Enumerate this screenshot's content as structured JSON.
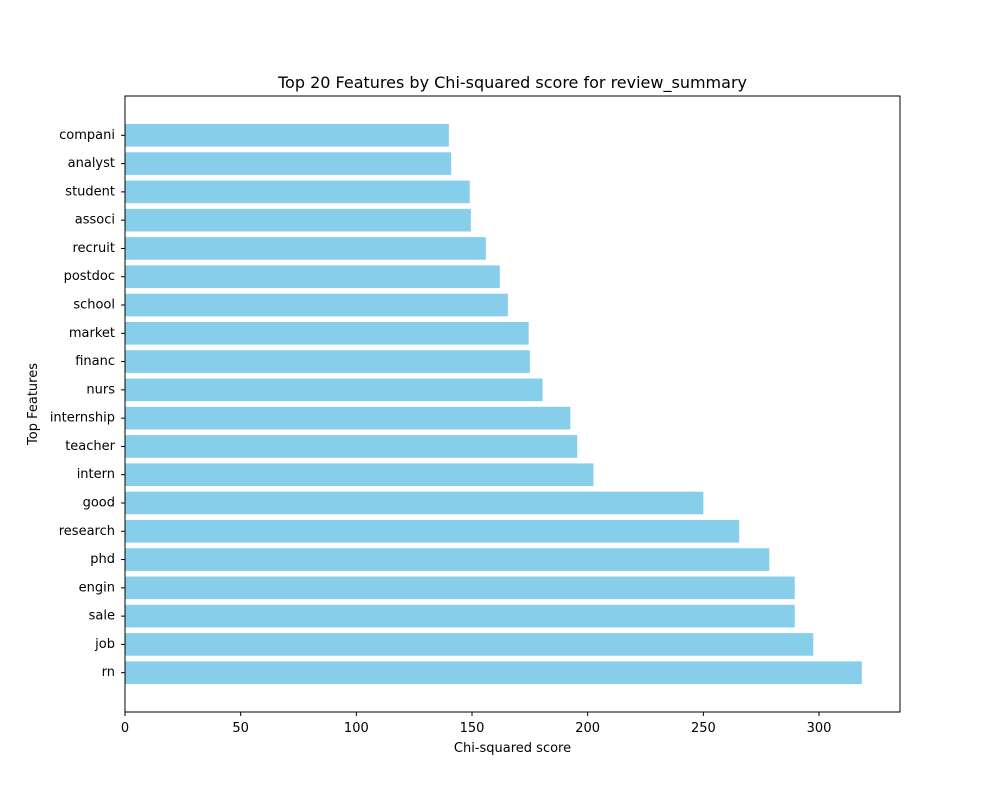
{
  "chart_data": {
    "type": "bar",
    "orientation": "horizontal",
    "title": "Top 20 Features by Chi-squared score for review_summary",
    "xlabel": "Chi-squared score",
    "ylabel": "Top Features",
    "xlim": [
      0,
      335
    ],
    "xticks": [
      0,
      50,
      100,
      150,
      200,
      250,
      300
    ],
    "grid": false,
    "bar_color": "#87CEEB",
    "categories": [
      "rn",
      "job",
      "sale",
      "engin",
      "phd",
      "research",
      "good",
      "intern",
      "teacher",
      "internship",
      "nurs",
      "financ",
      "market",
      "school",
      "postdoc",
      "recruit",
      "associ",
      "student",
      "analyst",
      "compani"
    ],
    "values": [
      318.5,
      297.5,
      289.5,
      289.5,
      278.5,
      265.5,
      250,
      202.5,
      195.5,
      192.5,
      180.5,
      175,
      174.5,
      165.5,
      162,
      156,
      149.5,
      149,
      141,
      140
    ]
  }
}
